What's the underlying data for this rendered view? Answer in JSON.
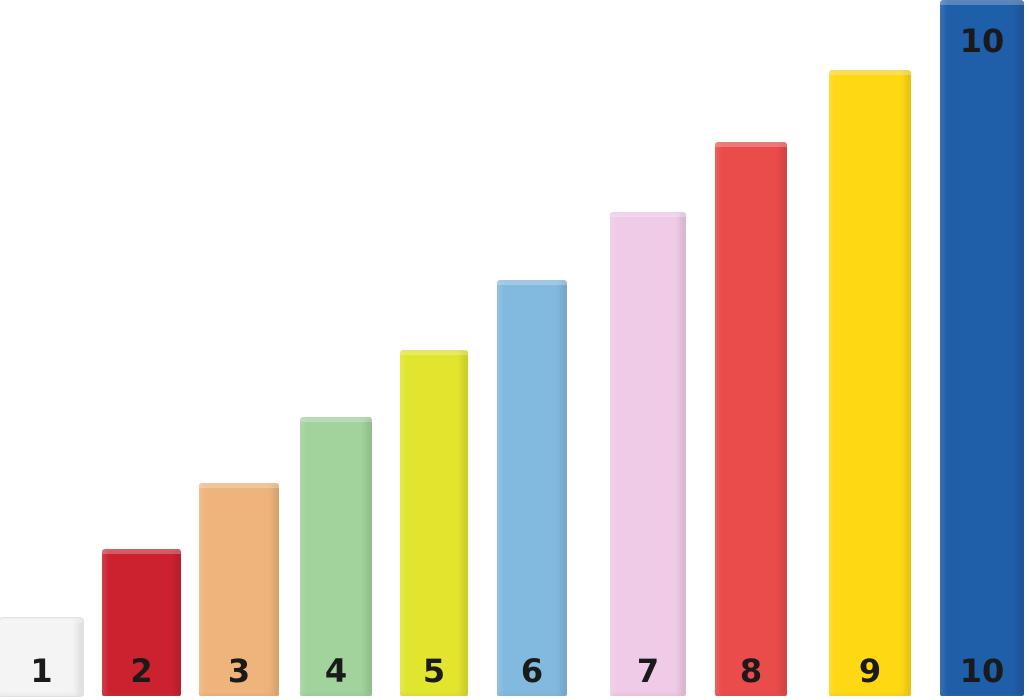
{
  "rods": [
    {
      "label": "1",
      "length": 1,
      "color": "#f4f4f4"
    },
    {
      "label": "2",
      "length": 2,
      "color": "#cc2230"
    },
    {
      "label": "3",
      "length": 3,
      "color": "#efb47c"
    },
    {
      "label": "4",
      "length": 4,
      "color": "#a2d39c"
    },
    {
      "label": "5",
      "length": 5,
      "color": "#e2e52e"
    },
    {
      "label": "6",
      "length": 6,
      "color": "#82b9df"
    },
    {
      "label": "7",
      "length": 7,
      "color": "#efcbe8"
    },
    {
      "label": "8",
      "length": 8,
      "color": "#ea4b4b"
    },
    {
      "label": "9",
      "length": 9,
      "color": "#ffd814"
    },
    {
      "label": "10",
      "length": 10,
      "color": "#1f5ea8",
      "top_label": "10"
    }
  ]
}
